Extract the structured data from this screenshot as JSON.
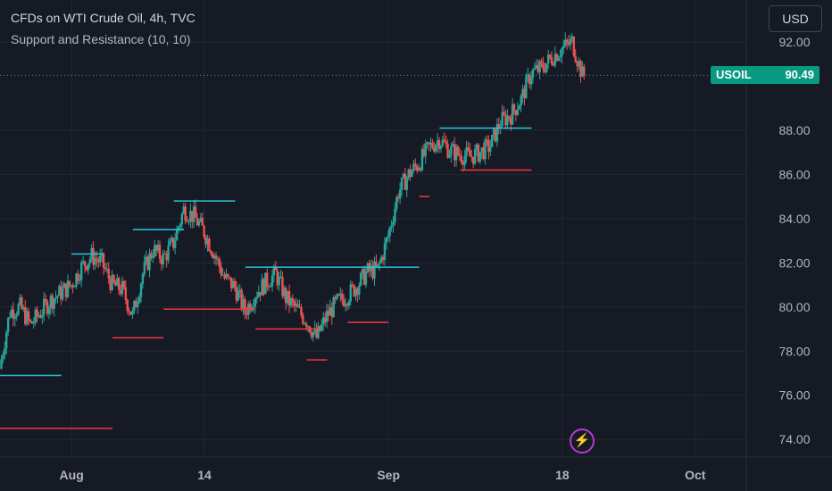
{
  "header": {
    "title": "CFDs on WTI Crude Oil, 4h, TVC",
    "indicator": "Support and Resistance (10, 10)"
  },
  "currency_button": "USD",
  "price_tag": {
    "symbol": "USOIL",
    "value": "90.49"
  },
  "icons": {
    "alert": "lightning-bolt-icon"
  },
  "colors": {
    "background": "#161a25",
    "up": "#26a69a",
    "down": "#ef5350",
    "resistance": "#26c6da",
    "support": "#f23645",
    "price_tag": "#089981",
    "grid": "#242834"
  },
  "chart_data": {
    "type": "candlestick",
    "title": "CFDs on WTI Crude Oil, 4h, TVC",
    "indicator": "Support and Resistance (10, 10)",
    "y_ticks": [
      "74.00",
      "76.00",
      "78.00",
      "80.00",
      "82.00",
      "84.00",
      "86.00",
      "88.00",
      "92.00"
    ],
    "x_ticks": [
      {
        "label": "Aug",
        "date": "2023-08-01"
      },
      {
        "label": "14",
        "date": "2023-08-14"
      },
      {
        "label": "Sep",
        "date": "2023-09-01"
      },
      {
        "label": "18",
        "date": "2023-09-18"
      },
      {
        "label": "Oct",
        "date": "2023-10-01"
      }
    ],
    "x_range": [
      "2023-07-25",
      "2023-10-06"
    ],
    "ylim": [
      73.2,
      93.9
    ],
    "last_price": 90.49,
    "grid": true,
    "price_path": [
      [
        "2023-07-25",
        77.2
      ],
      [
        "2023-07-26",
        79.8
      ],
      [
        "2023-07-27",
        80.0
      ],
      [
        "2023-07-28",
        79.2
      ],
      [
        "2023-07-30",
        80.3
      ],
      [
        "2023-08-01",
        81.0
      ],
      [
        "2023-08-02",
        81.8
      ],
      [
        "2023-08-03",
        82.3
      ],
      [
        "2023-08-04",
        82.0
      ],
      [
        "2023-08-05",
        81.0
      ],
      [
        "2023-08-06",
        80.8
      ],
      [
        "2023-08-07",
        79.6
      ],
      [
        "2023-08-08",
        81.5
      ],
      [
        "2023-08-09",
        82.6
      ],
      [
        "2023-08-10",
        82.2
      ],
      [
        "2023-08-11",
        82.9
      ],
      [
        "2023-08-12",
        84.4
      ],
      [
        "2023-08-13",
        84.1
      ],
      [
        "2023-08-14",
        83.4
      ],
      [
        "2023-08-15",
        82.4
      ],
      [
        "2023-08-16",
        81.3
      ],
      [
        "2023-08-17",
        80.9
      ],
      [
        "2023-08-18",
        79.8
      ],
      [
        "2023-08-19",
        80.6
      ],
      [
        "2023-08-20",
        81.1
      ],
      [
        "2023-08-21",
        81.5
      ],
      [
        "2023-08-22",
        80.4
      ],
      [
        "2023-08-23",
        79.9
      ],
      [
        "2023-08-24",
        79.4
      ],
      [
        "2023-08-25",
        78.6
      ],
      [
        "2023-08-26",
        79.6
      ],
      [
        "2023-08-27",
        80.2
      ],
      [
        "2023-08-28",
        80.5
      ],
      [
        "2023-08-29",
        81.0
      ],
      [
        "2023-08-30",
        81.6
      ],
      [
        "2023-08-31",
        81.7
      ],
      [
        "2023-09-01",
        83.2
      ],
      [
        "2023-09-02",
        85.2
      ],
      [
        "2023-09-03",
        86.0
      ],
      [
        "2023-09-04",
        86.5
      ],
      [
        "2023-09-05",
        87.2
      ],
      [
        "2023-09-06",
        87.6
      ],
      [
        "2023-09-07",
        87.1
      ],
      [
        "2023-09-08",
        86.9
      ],
      [
        "2023-09-09",
        86.8
      ],
      [
        "2023-09-10",
        87.0
      ],
      [
        "2023-09-11",
        87.3
      ],
      [
        "2023-09-12",
        88.4
      ],
      [
        "2023-09-13",
        88.7
      ],
      [
        "2023-09-14",
        89.4
      ],
      [
        "2023-09-15",
        90.6
      ],
      [
        "2023-09-16",
        90.8
      ],
      [
        "2023-09-17",
        91.3
      ],
      [
        "2023-09-18",
        91.7
      ],
      [
        "2023-09-19",
        92.0
      ],
      [
        "2023-09-20",
        90.5
      ]
    ],
    "support_lines": [
      {
        "start": "2023-07-25",
        "end": "2023-08-05",
        "price": 74.5
      },
      {
        "start": "2023-08-05",
        "end": "2023-08-10",
        "price": 78.6
      },
      {
        "start": "2023-08-10",
        "end": "2023-08-19",
        "price": 79.9
      },
      {
        "start": "2023-08-19",
        "end": "2023-08-25",
        "price": 79.0
      },
      {
        "start": "2023-08-24",
        "end": "2023-08-26",
        "price": 77.6
      },
      {
        "start": "2023-08-28",
        "end": "2023-09-01",
        "price": 79.3
      },
      {
        "start": "2023-09-04",
        "end": "2023-09-05",
        "price": 85.0
      },
      {
        "start": "2023-09-08",
        "end": "2023-09-15",
        "price": 86.2
      }
    ],
    "resistance_lines": [
      {
        "start": "2023-07-25",
        "end": "2023-07-31",
        "price": 76.9
      },
      {
        "start": "2023-08-01",
        "end": "2023-08-04",
        "price": 82.4
      },
      {
        "start": "2023-08-07",
        "end": "2023-08-12",
        "price": 83.5
      },
      {
        "start": "2023-08-11",
        "end": "2023-08-17",
        "price": 84.8
      },
      {
        "start": "2023-08-18",
        "end": "2023-09-04",
        "price": 81.8
      },
      {
        "start": "2023-09-06",
        "end": "2023-09-15",
        "price": 88.1
      }
    ]
  }
}
